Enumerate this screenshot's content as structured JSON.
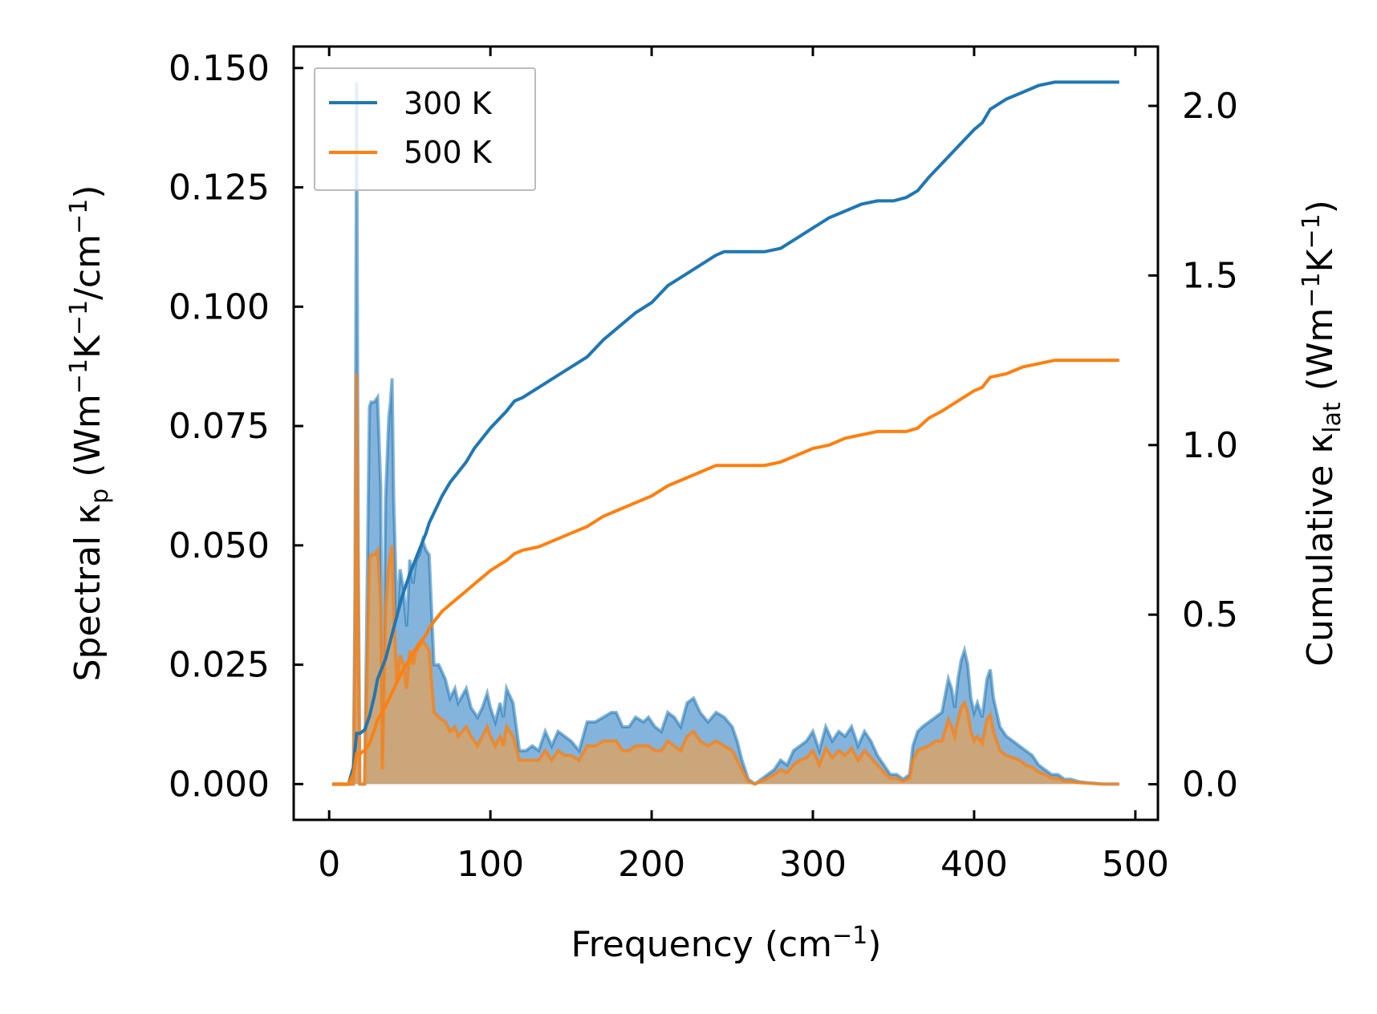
{
  "chart_data": {
    "type": "line",
    "xlabel": "Frequency (cm",
    "xlabel_sup": "−1",
    "xlabel_end": ")",
    "ylabel_left": {
      "a": "Spectral κ",
      "a_sub": "p",
      "b": " (Wm",
      "b_sup": "−1",
      "c": "K",
      "c_sup": "−1",
      "d": "/cm",
      "d_sup": "−1",
      "e": ")"
    },
    "ylabel_right": {
      "a": "Cumulative κ",
      "a_sub": "lat",
      "b": " (Wm",
      "b_sup": "−1",
      "c": "K",
      "c_sup": "−1",
      "d": ")"
    },
    "xlim": [
      -22,
      514
    ],
    "ylim_left": [
      -0.0075,
      0.1545
    ],
    "ylim_right": [
      -0.105,
      2.175
    ],
    "x_ticks": [
      0,
      100,
      200,
      300,
      400,
      500
    ],
    "x_tick_labels": [
      "0",
      "100",
      "200",
      "300",
      "400",
      "500"
    ],
    "y_left_ticks": [
      0,
      0.025,
      0.05,
      0.075,
      0.1,
      0.125,
      0.15
    ],
    "y_left_tick_labels": [
      "0.000",
      "0.025",
      "0.050",
      "0.075",
      "0.100",
      "0.125",
      "0.150"
    ],
    "y_right_ticks": [
      0,
      0.5,
      1,
      1.5,
      2
    ],
    "y_right_tick_labels": [
      "0.0",
      "0.5",
      "1.0",
      "1.5",
      "2.0"
    ],
    "legend_position": "top-left",
    "colors": {
      "s300": "#1f77b4",
      "s500": "#ff7f0e",
      "fill300": "#5b9bd0",
      "fill500": "#d2a46f"
    },
    "spectral_300": {
      "x": [
        2,
        12,
        15,
        16,
        17,
        18,
        19,
        20,
        22,
        25,
        26,
        28,
        30,
        32,
        33,
        35,
        37,
        38,
        39,
        40,
        42,
        44,
        46,
        48,
        50,
        52,
        54,
        56,
        58,
        60,
        62,
        65,
        68,
        72,
        75,
        78,
        80,
        85,
        88,
        90,
        92,
        95,
        98,
        100,
        103,
        106,
        108,
        110,
        114,
        118,
        122,
        126,
        130,
        134,
        138,
        142,
        146,
        150,
        155,
        160,
        165,
        170,
        175,
        178,
        182,
        186,
        190,
        195,
        198,
        202,
        206,
        210,
        214,
        218,
        222,
        226,
        230,
        235,
        240,
        245,
        250,
        253,
        256,
        260,
        264,
        268,
        272,
        276,
        280,
        284,
        288,
        292,
        296,
        300,
        304,
        308,
        312,
        316,
        320,
        324,
        328,
        332,
        336,
        340,
        344,
        348,
        352,
        356,
        360,
        362,
        365,
        368,
        372,
        376,
        380,
        384,
        386,
        388,
        390,
        392,
        394,
        396,
        398,
        400,
        402,
        405,
        408,
        410,
        412,
        414,
        416,
        418,
        420,
        424,
        428,
        432,
        436,
        440,
        444,
        448,
        452,
        456,
        460,
        465,
        470,
        480,
        490
      ],
      "y": [
        0,
        0,
        0,
        0.04,
        0.147,
        0.05,
        0,
        0,
        0,
        0.079,
        0.08,
        0.08,
        0.081,
        0.062,
        0.005,
        0.06,
        0.077,
        0.08,
        0.085,
        0.06,
        0.035,
        0.045,
        0.041,
        0.033,
        0.047,
        0.042,
        0.047,
        0.048,
        0.051,
        0.049,
        0.048,
        0.025,
        0.025,
        0.022,
        0.018,
        0.02,
        0.017,
        0.02,
        0.016,
        0.015,
        0.014,
        0.016,
        0.019,
        0.016,
        0.013,
        0.017,
        0.014,
        0.02,
        0.017,
        0.007,
        0.007,
        0.008,
        0.007,
        0.011,
        0.008,
        0.011,
        0.01,
        0.009,
        0.007,
        0.013,
        0.013,
        0.014,
        0.015,
        0.015,
        0.012,
        0.012,
        0.014,
        0.013,
        0.014,
        0.012,
        0.011,
        0.015,
        0.014,
        0.012,
        0.017,
        0.018,
        0.015,
        0.013,
        0.015,
        0.014,
        0.012,
        0.009,
        0.005,
        0.001,
        0,
        0.001,
        0.002,
        0.003,
        0.005,
        0.004,
        0.007,
        0.008,
        0.009,
        0.011,
        0.007,
        0.012,
        0.009,
        0.011,
        0.01,
        0.012,
        0.008,
        0.011,
        0.009,
        0.006,
        0.004,
        0.002,
        0.002,
        0.001,
        0.002,
        0.008,
        0.011,
        0.012,
        0.013,
        0.014,
        0.015,
        0.022,
        0.02,
        0.016,
        0.022,
        0.026,
        0.028,
        0.025,
        0.018,
        0.015,
        0.017,
        0.014,
        0.022,
        0.024,
        0.018,
        0.015,
        0.012,
        0.011,
        0.01,
        0.009,
        0.008,
        0.007,
        0.006,
        0.004,
        0.003,
        0.002,
        0.002,
        0.001,
        0.001,
        0.0005,
        0.0003,
        0,
        0
      ]
    },
    "spectral_500": {
      "x": [
        2,
        12,
        15,
        16,
        17,
        18,
        19,
        20,
        22,
        25,
        26,
        28,
        30,
        32,
        33,
        35,
        37,
        38,
        39,
        40,
        42,
        44,
        46,
        48,
        50,
        52,
        54,
        56,
        58,
        60,
        62,
        65,
        68,
        72,
        75,
        78,
        80,
        85,
        88,
        90,
        92,
        95,
        98,
        100,
        103,
        106,
        108,
        110,
        114,
        118,
        122,
        126,
        130,
        134,
        138,
        142,
        146,
        150,
        155,
        160,
        165,
        170,
        175,
        178,
        182,
        186,
        190,
        195,
        198,
        202,
        206,
        210,
        214,
        218,
        222,
        226,
        230,
        235,
        240,
        245,
        250,
        253,
        256,
        260,
        264,
        268,
        272,
        276,
        280,
        284,
        288,
        292,
        296,
        300,
        304,
        308,
        312,
        316,
        320,
        324,
        328,
        332,
        336,
        340,
        344,
        348,
        352,
        356,
        360,
        362,
        365,
        368,
        372,
        376,
        380,
        384,
        386,
        388,
        390,
        392,
        394,
        396,
        398,
        400,
        402,
        405,
        408,
        410,
        412,
        414,
        416,
        418,
        420,
        424,
        428,
        432,
        436,
        440,
        444,
        448,
        452,
        456,
        460,
        465,
        470,
        480,
        490
      ],
      "y": [
        0,
        0,
        0,
        0.025,
        0.086,
        0.03,
        0,
        0,
        0,
        0.047,
        0.048,
        0.048,
        0.049,
        0.037,
        0.003,
        0.036,
        0.046,
        0.048,
        0.05,
        0.036,
        0.021,
        0.027,
        0.025,
        0.02,
        0.028,
        0.025,
        0.028,
        0.029,
        0.03,
        0.029,
        0.028,
        0.015,
        0.014,
        0.013,
        0.011,
        0.012,
        0.01,
        0.012,
        0.01,
        0.009,
        0.008,
        0.01,
        0.012,
        0.01,
        0.008,
        0.01,
        0.008,
        0.012,
        0.01,
        0.005,
        0.005,
        0.005,
        0.005,
        0.007,
        0.005,
        0.007,
        0.006,
        0.006,
        0.005,
        0.008,
        0.008,
        0.009,
        0.009,
        0.009,
        0.007,
        0.007,
        0.008,
        0.008,
        0.008,
        0.007,
        0.007,
        0.009,
        0.008,
        0.007,
        0.01,
        0.011,
        0.009,
        0.008,
        0.009,
        0.008,
        0.007,
        0.005,
        0.003,
        0.0005,
        0,
        0.0006,
        0.0012,
        0.002,
        0.003,
        0.0024,
        0.004,
        0.005,
        0.0055,
        0.007,
        0.004,
        0.0075,
        0.0055,
        0.007,
        0.006,
        0.0075,
        0.005,
        0.007,
        0.0055,
        0.004,
        0.0025,
        0.0012,
        0.0012,
        0.0006,
        0.0012,
        0.005,
        0.007,
        0.0075,
        0.008,
        0.009,
        0.009,
        0.0135,
        0.012,
        0.01,
        0.0135,
        0.016,
        0.017,
        0.015,
        0.011,
        0.009,
        0.01,
        0.0085,
        0.0135,
        0.0145,
        0.011,
        0.009,
        0.007,
        0.0065,
        0.006,
        0.0055,
        0.005,
        0.004,
        0.0035,
        0.0025,
        0.002,
        0.0012,
        0.0012,
        0.0006,
        0.0006,
        0.0003,
        0.0002,
        0,
        0
      ]
    },
    "series": [
      {
        "name": "300 K",
        "x": [
          2,
          12,
          15,
          17,
          19,
          22,
          25,
          28,
          30,
          35,
          40,
          45,
          50,
          55,
          60,
          62,
          65,
          70,
          75,
          80,
          85,
          90,
          95,
          100,
          110,
          115,
          120,
          130,
          140,
          150,
          160,
          170,
          180,
          190,
          200,
          210,
          220,
          230,
          240,
          245,
          250,
          260,
          270,
          280,
          290,
          300,
          310,
          320,
          330,
          340,
          350,
          358,
          365,
          372,
          380,
          390,
          400,
          405,
          410,
          420,
          430,
          440,
          450,
          460,
          470,
          480,
          490
        ],
        "y": [
          0,
          0,
          0.05,
          0.15,
          0.15,
          0.16,
          0.2,
          0.26,
          0.31,
          0.37,
          0.46,
          0.55,
          0.62,
          0.68,
          0.74,
          0.77,
          0.8,
          0.85,
          0.89,
          0.92,
          0.95,
          0.99,
          1.02,
          1.05,
          1.1,
          1.13,
          1.14,
          1.17,
          1.2,
          1.23,
          1.26,
          1.31,
          1.35,
          1.39,
          1.42,
          1.47,
          1.5,
          1.53,
          1.56,
          1.57,
          1.57,
          1.57,
          1.57,
          1.58,
          1.61,
          1.64,
          1.67,
          1.69,
          1.71,
          1.72,
          1.72,
          1.73,
          1.75,
          1.79,
          1.83,
          1.88,
          1.93,
          1.95,
          1.99,
          2.02,
          2.04,
          2.06,
          2.07,
          2.07,
          2.07,
          2.07,
          2.07
        ]
      },
      {
        "name": "500 K",
        "x": [
          2,
          12,
          15,
          17,
          19,
          22,
          25,
          28,
          30,
          35,
          40,
          45,
          50,
          55,
          60,
          62,
          65,
          70,
          75,
          80,
          85,
          90,
          95,
          100,
          110,
          115,
          120,
          130,
          140,
          150,
          160,
          170,
          180,
          190,
          200,
          210,
          220,
          230,
          240,
          245,
          250,
          260,
          270,
          280,
          290,
          300,
          310,
          320,
          330,
          340,
          350,
          358,
          365,
          372,
          380,
          390,
          400,
          405,
          410,
          420,
          430,
          440,
          450,
          460,
          470,
          480,
          490
        ],
        "y": [
          0,
          0,
          0.03,
          0.09,
          0.09,
          0.1,
          0.12,
          0.16,
          0.19,
          0.23,
          0.28,
          0.33,
          0.37,
          0.41,
          0.44,
          0.46,
          0.48,
          0.51,
          0.53,
          0.55,
          0.57,
          0.59,
          0.61,
          0.63,
          0.66,
          0.68,
          0.69,
          0.7,
          0.72,
          0.74,
          0.76,
          0.79,
          0.81,
          0.83,
          0.85,
          0.88,
          0.9,
          0.92,
          0.94,
          0.94,
          0.94,
          0.94,
          0.94,
          0.95,
          0.97,
          0.99,
          1.0,
          1.02,
          1.03,
          1.04,
          1.04,
          1.04,
          1.05,
          1.08,
          1.1,
          1.13,
          1.16,
          1.17,
          1.2,
          1.21,
          1.23,
          1.24,
          1.25,
          1.25,
          1.25,
          1.25,
          1.25
        ]
      }
    ]
  }
}
